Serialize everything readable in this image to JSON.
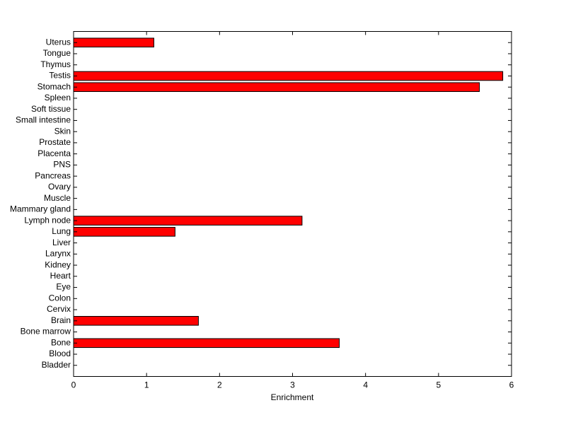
{
  "chart_data": {
    "type": "barh",
    "x_label": "Enrichment",
    "categories": [
      "Bladder",
      "Blood",
      "Bone",
      "Bone marrow",
      "Brain",
      "Cervix",
      "Colon",
      "Eye",
      "Heart",
      "Kidney",
      "Larynx",
      "Liver",
      "Lung",
      "Lymph node",
      "Mammary gland",
      "Muscle",
      "Ovary",
      "Pancreas",
      "PNS",
      "Placenta",
      "Prostate",
      "Skin",
      "Small intestine",
      "Soft tissue",
      "Spleen",
      "Stomach",
      "Testis",
      "Thymus",
      "Tongue",
      "Uterus"
    ],
    "values": [
      0,
      0,
      3.64,
      0,
      1.71,
      0,
      0,
      0,
      0,
      0,
      0,
      0,
      1.39,
      3.13,
      0,
      0,
      0,
      0,
      0,
      0,
      0,
      0,
      0,
      0,
      0,
      5.56,
      5.88,
      0,
      0,
      1.1
    ],
    "color": "#ff0000",
    "xlim": [
      0,
      6
    ],
    "xticks": [
      0,
      1,
      2,
      3,
      4,
      5,
      6
    ],
    "grid": false
  }
}
